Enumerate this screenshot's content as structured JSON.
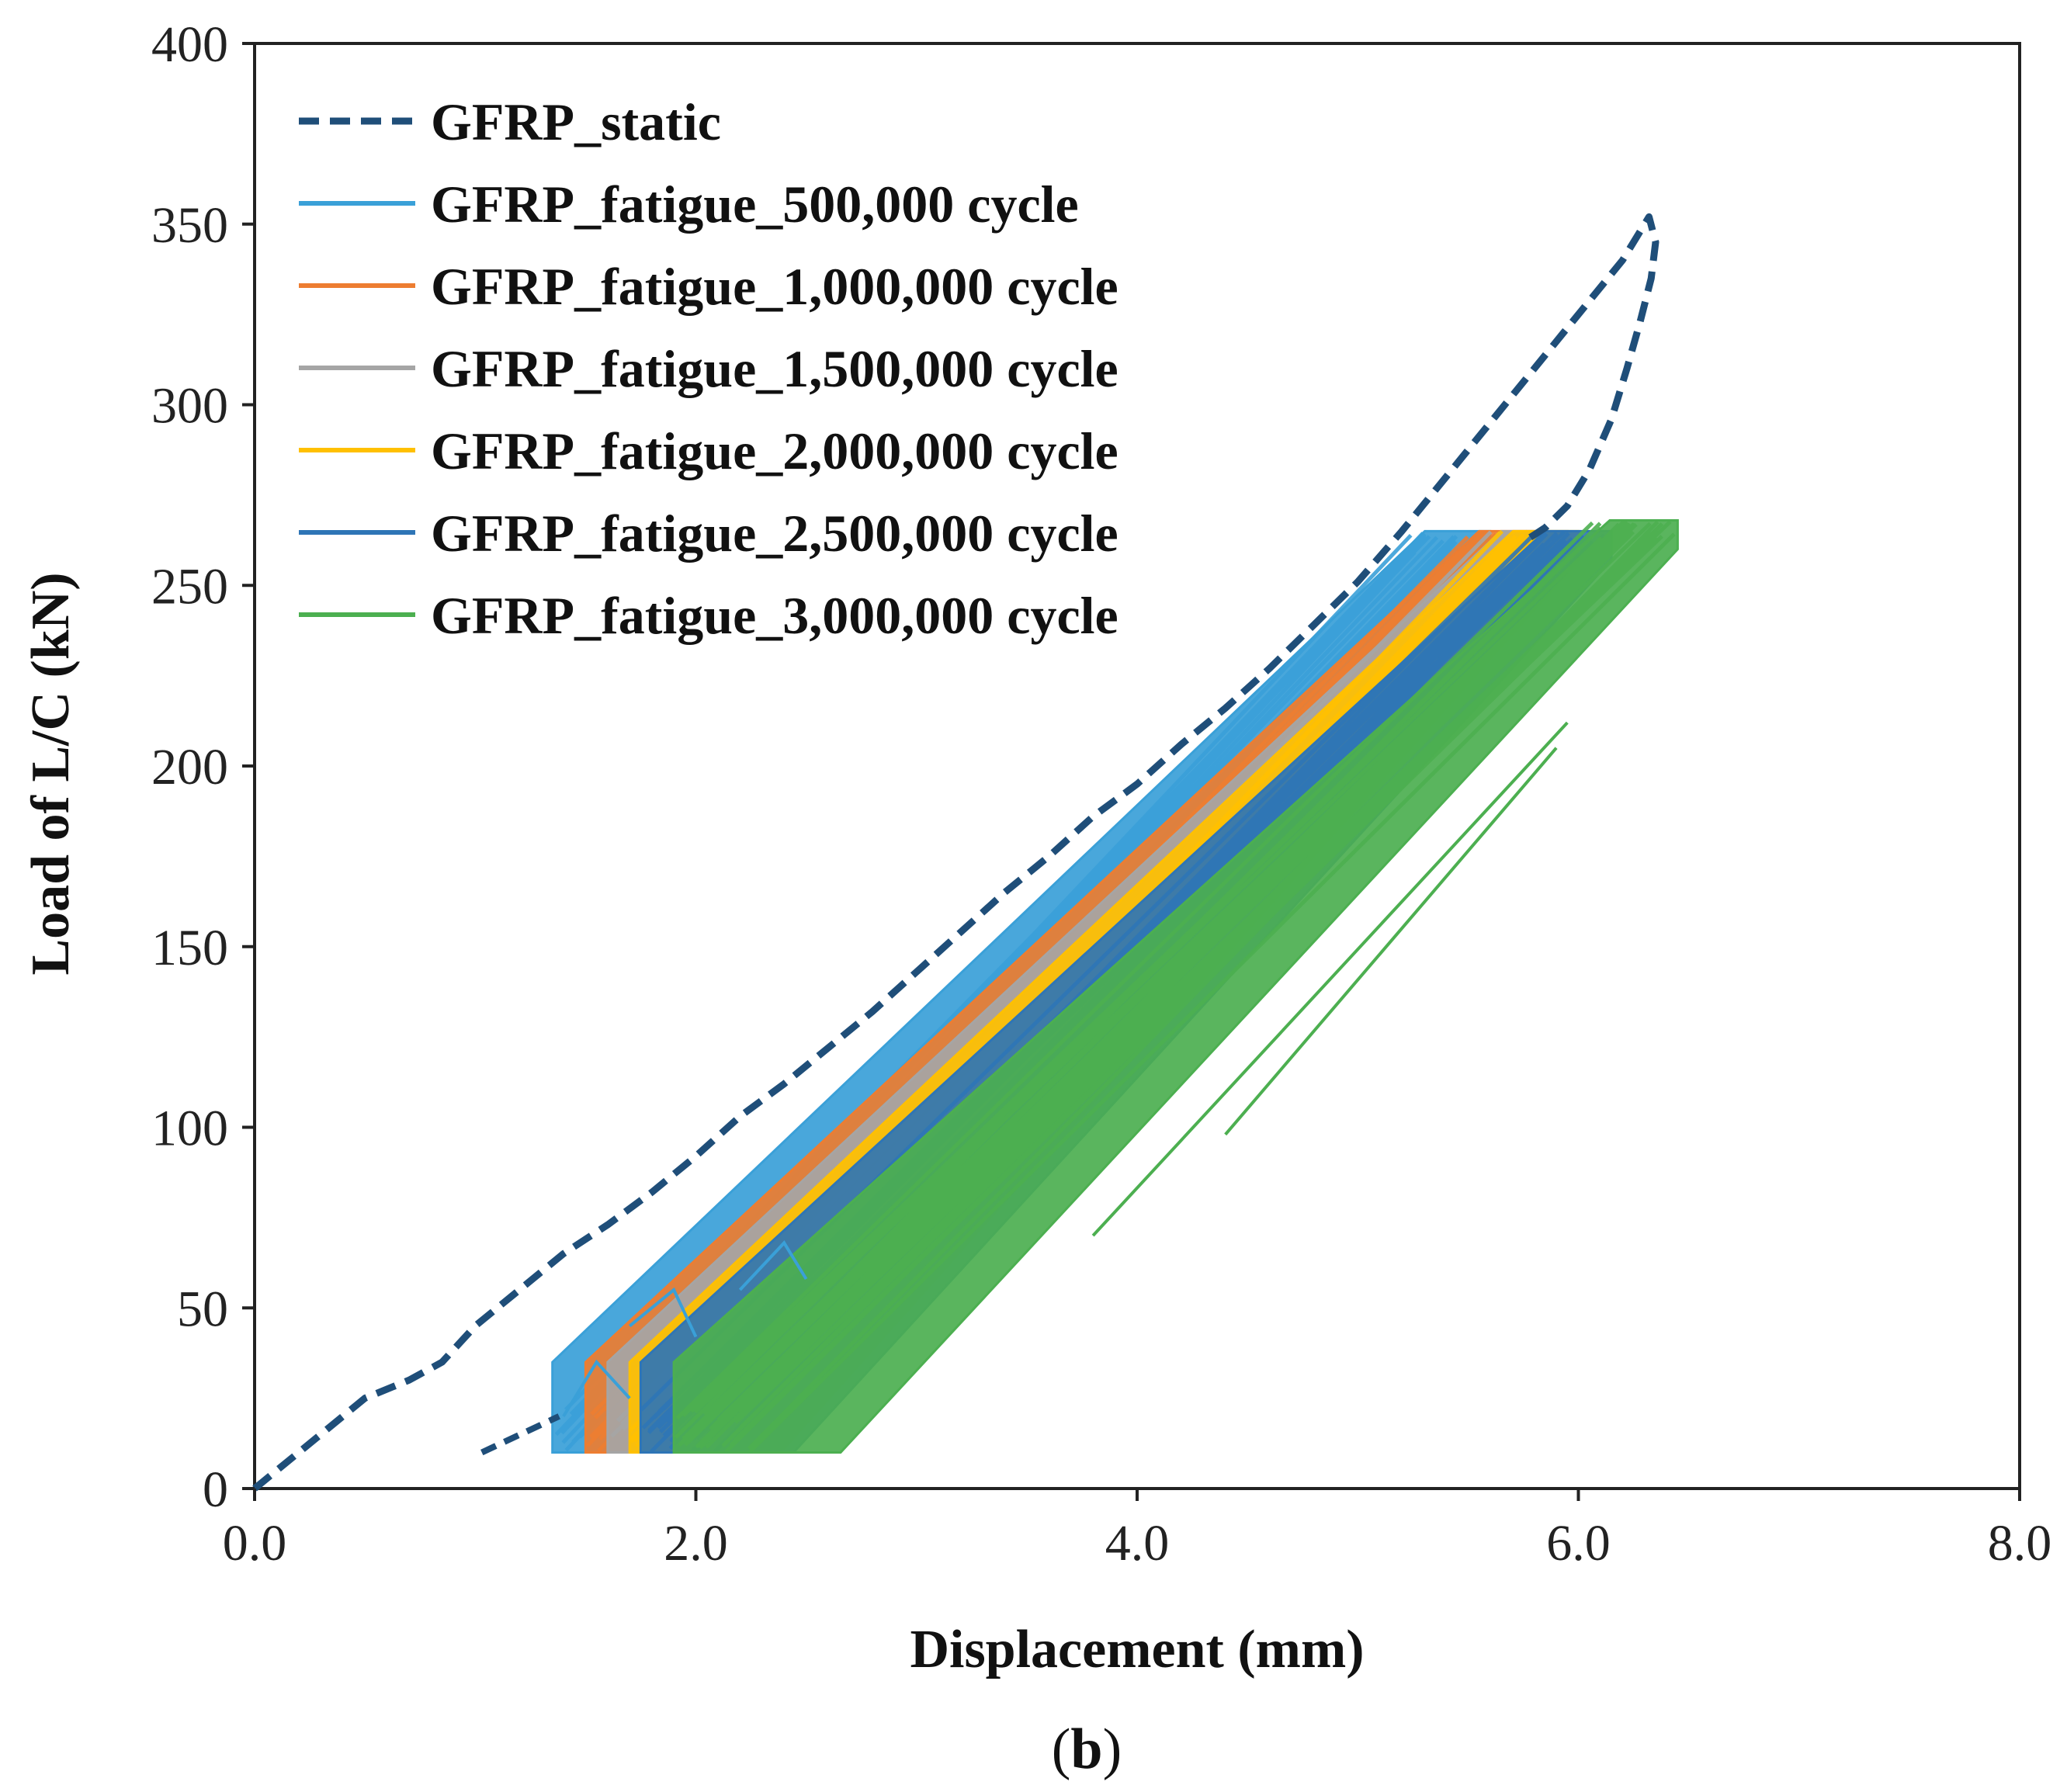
{
  "chart_data": {
    "type": "line",
    "title": "",
    "caption_letter": "b",
    "caption_open": "(",
    "caption_close": ")",
    "xlabel": "Displacement (mm)",
    "ylabel": "Load of L/C (kN)",
    "xlim": [
      0.0,
      8.0
    ],
    "ylim": [
      0,
      400
    ],
    "xticks": [
      0.0,
      2.0,
      4.0,
      6.0,
      8.0
    ],
    "xtick_labels": [
      "0.0",
      "2.0",
      "4.0",
      "6.0",
      "8.0"
    ],
    "yticks": [
      0,
      50,
      100,
      150,
      200,
      250,
      300,
      350,
      400
    ],
    "ytick_labels": [
      "0",
      "50",
      "100",
      "150",
      "200",
      "250",
      "300",
      "350",
      "400"
    ],
    "grid": false,
    "legend_position": "top-left",
    "series": [
      {
        "name": "GFRP_static",
        "style": "dashed",
        "color": "#1F4E79",
        "x": [
          0.0,
          0.3,
          0.5,
          0.7,
          0.85,
          1.0,
          1.2,
          1.4,
          1.6,
          1.8,
          2.0,
          2.2,
          2.4,
          2.6,
          2.8,
          3.0,
          3.2,
          3.4,
          3.6,
          3.8,
          4.0,
          4.2,
          4.4,
          4.6,
          4.8,
          5.0,
          5.2,
          5.4,
          5.6,
          5.8,
          6.0,
          6.2,
          6.32,
          6.35,
          6.33,
          6.28,
          6.22,
          6.15,
          6.05,
          5.95,
          5.85,
          5.8,
          5.75
        ],
        "y": [
          0,
          15,
          25,
          30,
          35,
          45,
          55,
          65,
          73,
          82,
          92,
          103,
          112,
          122,
          132,
          143,
          154,
          165,
          175,
          186,
          195,
          206,
          216,
          227,
          239,
          251,
          265,
          280,
          295,
          310,
          325,
          340,
          352,
          345,
          335,
          323,
          310,
          296,
          282,
          272,
          266,
          264,
          262
        ]
      },
      {
        "name": "GFRP_fatigue_500,000 cycle",
        "style": "solid",
        "color": "#3AA0D8",
        "band": {
          "x_min": 1.35,
          "x_max": 5.6,
          "y_min": 10,
          "y_max": 265,
          "x_start_top": 1.9,
          "x_end_bottom": 5.1
        }
      },
      {
        "name": "GFRP_fatigue_1,000,000 cycle",
        "style": "solid",
        "color": "#ED7D31",
        "band": {
          "x_min": 1.5,
          "x_max": 5.85,
          "y_min": 10,
          "y_max": 265,
          "x_start_top": 2.1,
          "x_end_bottom": 5.3
        }
      },
      {
        "name": "GFRP_fatigue_1,500,000 cycle",
        "style": "solid",
        "color": "#A5A5A5",
        "band": {
          "x_min": 1.6,
          "x_max": 5.95,
          "y_min": 10,
          "y_max": 265,
          "x_start_top": 2.2,
          "x_end_bottom": 5.4
        }
      },
      {
        "name": "GFRP_fatigue_2,000,000 cycle",
        "style": "solid",
        "color": "#FFC000",
        "band": {
          "x_min": 1.7,
          "x_max": 6.0,
          "y_min": 10,
          "y_max": 265,
          "x_start_top": 2.3,
          "x_end_bottom": 5.5
        }
      },
      {
        "name": "GFRP_fatigue_2,500,000 cycle",
        "style": "solid",
        "color": "#2E75B6",
        "band": {
          "x_min": 1.75,
          "x_max": 6.15,
          "y_min": 10,
          "y_max": 265,
          "x_start_top": 2.4,
          "x_end_bottom": 5.6
        }
      },
      {
        "name": "GFRP_fatigue_3,000,000 cycle",
        "style": "solid",
        "color": "#4CAF50",
        "band": {
          "x_min": 1.9,
          "x_max": 6.45,
          "y_min": 10,
          "y_max": 268,
          "x_start_top": 2.6,
          "x_end_bottom": 6.1
        },
        "outlier_lines": [
          {
            "x": [
              3.8,
              5.95
            ],
            "y": [
              70,
              212
            ]
          },
          {
            "x": [
              4.4,
              5.9
            ],
            "y": [
              98,
              205
            ]
          }
        ]
      }
    ]
  }
}
